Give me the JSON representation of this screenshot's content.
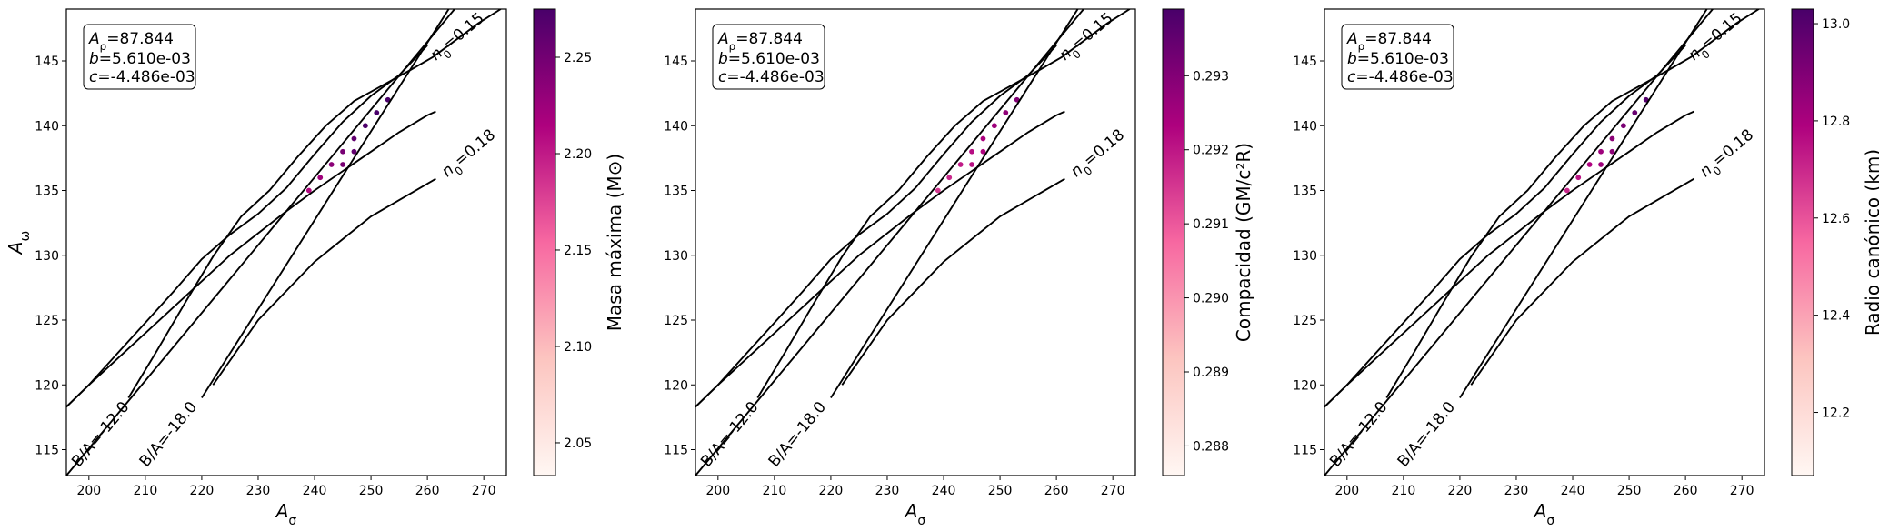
{
  "shared": {
    "x_ticks": [
      200,
      210,
      220,
      230,
      240,
      250,
      260,
      270
    ],
    "y_ticks": [
      115,
      120,
      125,
      130,
      135,
      140,
      145
    ],
    "xlim": [
      196,
      274
    ],
    "ylim": [
      113,
      149
    ],
    "line_labels": {
      "n015": "n₀=0.15",
      "n018": "n₀=0.18",
      "ba12": "B/A=-12.0",
      "ba18": "B/A=-18.0"
    },
    "info_lines": [
      "Aρ=87.844",
      "b=5.610e-03",
      "c=-4.486e-03"
    ],
    "curves": {
      "n015": {
        "x": [
          207,
          212,
          217,
          222,
          227,
          232,
          237,
          242,
          247,
          252,
          257,
          261,
          265,
          269,
          273
        ],
        "y": [
          119.0,
          122.6,
          126.3,
          129.9,
          133.0,
          135.0,
          137.6,
          140.0,
          141.9,
          143.1,
          144.3,
          145.3,
          146.6,
          147.9,
          149.0
        ]
      },
      "n018": {
        "x": [
          196,
          200,
          205,
          210,
          215,
          220,
          225,
          230,
          235,
          240,
          245,
          250,
          255,
          260,
          261.5
        ],
        "y": [
          118.3,
          120.0,
          122.0,
          124.0,
          126.0,
          128.0,
          130.0,
          131.7,
          133.4,
          135.0,
          136.5,
          138.0,
          139.5,
          140.8,
          141.1
        ]
      },
      "ba12": {
        "x": [
          196,
          274
        ],
        "y": [
          113.0,
          153.8
        ]
      },
      "ba18": {
        "x": [
          220,
          274
        ],
        "y": [
          119.0,
          156.0
        ]
      },
      "upper_upper": {
        "x": [
          196,
          200,
          205,
          210,
          215,
          220,
          225,
          230,
          235,
          240,
          245,
          250,
          255,
          260
        ],
        "y": [
          118.3,
          120.0,
          122.4,
          124.8,
          127.2,
          129.7,
          131.6,
          133.2,
          135.2,
          137.8,
          140.3,
          142.3,
          143.9,
          146.2
        ]
      },
      "lower_lower": {
        "x": [
          222,
          230,
          240,
          250,
          261.5
        ],
        "y": [
          120.0,
          125.0,
          129.5,
          133.0,
          135.9
        ]
      }
    }
  },
  "chart_data": [
    {
      "type": "scatter",
      "xlabel": "Aσ",
      "ylabel": "Aω",
      "colorbar_label": "Masa máxima (M⊙)",
      "colorbar_ticks": [
        "2.05",
        "2.10",
        "2.15",
        "2.20",
        "2.25"
      ],
      "colorbar_tick_values": [
        2.05,
        2.1,
        2.15,
        2.2,
        2.25
      ],
      "colorbar_range": [
        2.033,
        2.275
      ],
      "colormap": [
        "#fff7f3",
        "#fcc5c0",
        "#f768a1",
        "#ae017e",
        "#49006a"
      ],
      "value_model": {
        "base": 2.035,
        "per_x": 0.0058,
        "per_y": 0.0027,
        "x0": 211,
        "y0": 119
      }
    },
    {
      "type": "scatter",
      "xlabel": "Aσ",
      "ylabel": "",
      "colorbar_label": "Compacidad (GM/c²R)",
      "colorbar_ticks": [
        "0.288",
        "0.289",
        "0.290",
        "0.291",
        "0.292",
        "0.293"
      ],
      "colorbar_tick_values": [
        0.288,
        0.289,
        0.29,
        0.291,
        0.292,
        0.293
      ],
      "colorbar_range": [
        0.2876,
        0.2939
      ],
      "colormap": [
        "#fff7f3",
        "#fcc5c0",
        "#f768a1",
        "#ae017e",
        "#49006a"
      ],
      "value_model": {
        "base": 0.2884,
        "per_x": 9e-05,
        "per_y": 0.00012,
        "x0": 211,
        "y0": 119
      }
    },
    {
      "type": "scatter",
      "xlabel": "Aσ",
      "ylabel": "",
      "colorbar_label": "Radio canónico (km)",
      "colorbar_ticks": [
        "12.2",
        "12.4",
        "12.6",
        "12.8",
        "13.0"
      ],
      "colorbar_tick_values": [
        12.2,
        12.4,
        12.6,
        12.8,
        13.0
      ],
      "colorbar_range": [
        12.07,
        13.03
      ],
      "colormap": [
        "#fff7f3",
        "#fcc5c0",
        "#f768a1",
        "#ae017e",
        "#49006a"
      ],
      "value_model": {
        "base": 12.1,
        "per_x": 0.0195,
        "per_y": 0.0115,
        "x0": 211,
        "y0": 119
      }
    }
  ]
}
